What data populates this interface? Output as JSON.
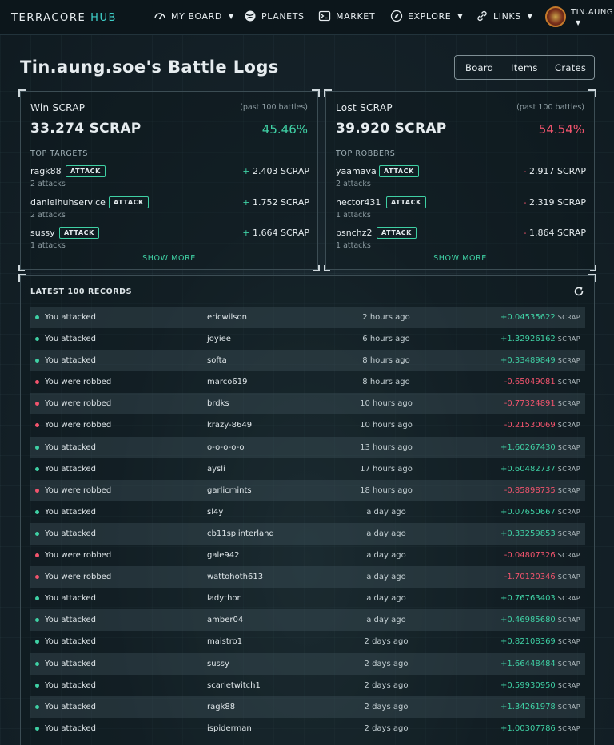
{
  "nav": {
    "logo_a": "TERRACORE",
    "logo_b": "HUB",
    "items": [
      {
        "label": "MY BOARD",
        "icon": "gauge-icon",
        "caret": true
      },
      {
        "label": "PLANETS",
        "icon": "planet-icon",
        "caret": false
      },
      {
        "label": "MARKET",
        "icon": "terminal-icon",
        "caret": false
      },
      {
        "label": "EXPLORE",
        "icon": "compass-icon",
        "caret": true
      },
      {
        "label": "LINKS",
        "icon": "link-icon",
        "caret": true
      }
    ],
    "username": "TIN.AUNG.S"
  },
  "page": {
    "title": "Tin.aung.soe's Battle Logs",
    "tabs": [
      "Board",
      "Items",
      "Crates"
    ]
  },
  "win": {
    "title": "Win SCRAP",
    "sub": "(past 100 battles)",
    "total": "33.274 SCRAP",
    "pct": "45.46%",
    "header": "TOP TARGETS",
    "rows": [
      {
        "name": "ragk88",
        "btn": "ATTACK",
        "count": "2 attacks",
        "amount": "2.403 SCRAP",
        "sign": "+"
      },
      {
        "name": "danielhuhservice",
        "btn": "ATTACK",
        "count": "2 attacks",
        "amount": "1.752 SCRAP",
        "sign": "+"
      },
      {
        "name": "sussy",
        "btn": "ATTACK",
        "count": "1 attacks",
        "amount": "1.664 SCRAP",
        "sign": "+"
      }
    ],
    "show_more": "SHOW MORE"
  },
  "lost": {
    "title": "Lost SCRAP",
    "sub": "(past 100 battles)",
    "total": "39.920 SCRAP",
    "pct": "54.54%",
    "header": "TOP ROBBERS",
    "rows": [
      {
        "name": "yaamava",
        "btn": "ATTACK",
        "count": "2 attacks",
        "amount": "2.917 SCRAP",
        "sign": "-"
      },
      {
        "name": "hector431",
        "btn": "ATTACK",
        "count": "1 attacks",
        "amount": "2.319 SCRAP",
        "sign": "-"
      },
      {
        "name": "psnchz2",
        "btn": "ATTACK",
        "count": "1 attacks",
        "amount": "1.864 SCRAP",
        "sign": "-"
      }
    ],
    "show_more": "SHOW MORE"
  },
  "records": {
    "header": "LATEST 100 RECORDS",
    "unit": "SCRAP",
    "rows": [
      {
        "action": "You attacked",
        "user": "ericwilson",
        "time": "2 hours ago",
        "value": "+0.04535622",
        "win": true
      },
      {
        "action": "You attacked",
        "user": "joyiee",
        "time": "6 hours ago",
        "value": "+1.32926162",
        "win": true
      },
      {
        "action": "You attacked",
        "user": "softa",
        "time": "8 hours ago",
        "value": "+0.33489849",
        "win": true
      },
      {
        "action": "You were robbed",
        "user": "marco619",
        "time": "8 hours ago",
        "value": "-0.65049081",
        "win": false
      },
      {
        "action": "You were robbed",
        "user": "brdks",
        "time": "10 hours ago",
        "value": "-0.77324891",
        "win": false
      },
      {
        "action": "You were robbed",
        "user": "krazy-8649",
        "time": "10 hours ago",
        "value": "-0.21530069",
        "win": false
      },
      {
        "action": "You attacked",
        "user": "o-o-o-o-o",
        "time": "13 hours ago",
        "value": "+1.60267430",
        "win": true
      },
      {
        "action": "You attacked",
        "user": "aysli",
        "time": "17 hours ago",
        "value": "+0.60482737",
        "win": true
      },
      {
        "action": "You were robbed",
        "user": "garlicmints",
        "time": "18 hours ago",
        "value": "-0.85898735",
        "win": false
      },
      {
        "action": "You attacked",
        "user": "sl4y",
        "time": "a day ago",
        "value": "+0.07650667",
        "win": true
      },
      {
        "action": "You attacked",
        "user": "cb11splinterland",
        "time": "a day ago",
        "value": "+0.33259853",
        "win": true
      },
      {
        "action": "You were robbed",
        "user": "gale942",
        "time": "a day ago",
        "value": "-0.04807326",
        "win": false
      },
      {
        "action": "You were robbed",
        "user": "wattohoth613",
        "time": "a day ago",
        "value": "-1.70120346",
        "win": false
      },
      {
        "action": "You attacked",
        "user": "ladythor",
        "time": "a day ago",
        "value": "+0.76763403",
        "win": true
      },
      {
        "action": "You attacked",
        "user": "amber04",
        "time": "a day ago",
        "value": "+0.46985680",
        "win": true
      },
      {
        "action": "You attacked",
        "user": "maistro1",
        "time": "2 days ago",
        "value": "+0.82108369",
        "win": true
      },
      {
        "action": "You attacked",
        "user": "sussy",
        "time": "2 days ago",
        "value": "+1.66448484",
        "win": true
      },
      {
        "action": "You attacked",
        "user": "scarletwitch1",
        "time": "2 days ago",
        "value": "+0.59930950",
        "win": true
      },
      {
        "action": "You attacked",
        "user": "ragk88",
        "time": "2 days ago",
        "value": "+1.34261978",
        "win": true
      },
      {
        "action": "You attacked",
        "user": "ispiderman",
        "time": "2 days ago",
        "value": "+1.00307786",
        "win": true
      }
    ]
  },
  "colors": {
    "accent": "#3fd0c9",
    "positive": "#3fd0a4",
    "negative": "#f2546d",
    "background": "#16232a"
  }
}
